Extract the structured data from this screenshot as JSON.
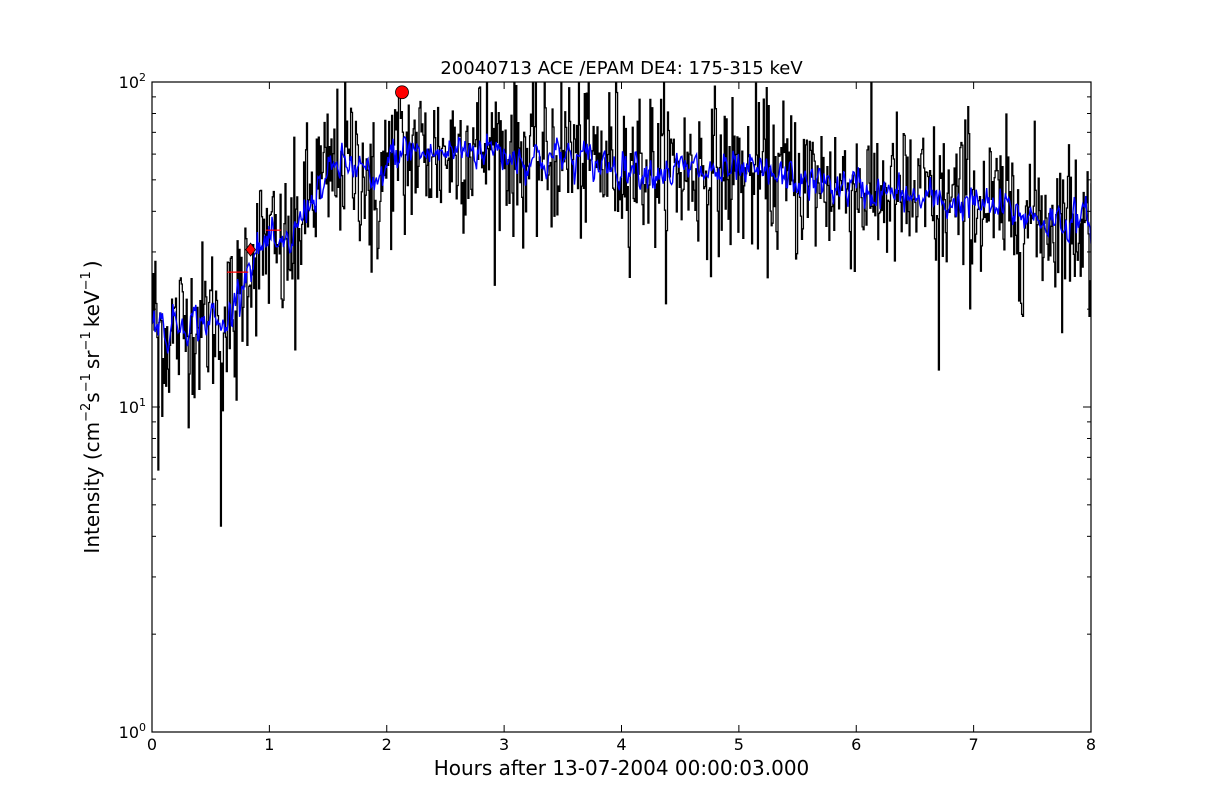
{
  "chart_data": {
    "type": "line",
    "title": "20040713 ACE /EPAM DE4: 175-315 keV",
    "xlabel": "Hours after 13-07-2004 00:00:03.000",
    "ylabel": {
      "prefix": "Intensity (cm",
      "exp1": "−2",
      "mid1": "s",
      "exp2": "−1",
      "mid2": "sr",
      "exp3": "−1",
      "mid3": "keV",
      "exp4": "−1",
      "suffix": ")"
    },
    "xlim": [
      0,
      8
    ],
    "ylim": [
      1,
      100
    ],
    "yscale": "log",
    "x_ticks": [
      "0",
      "1",
      "2",
      "3",
      "4",
      "5",
      "6",
      "7",
      "8"
    ],
    "y_ticks": [
      {
        "value": 1,
        "base": "10",
        "exp": "0"
      },
      {
        "value": 10,
        "base": "10",
        "exp": "1"
      },
      {
        "value": 100,
        "base": "10",
        "exp": "2"
      }
    ],
    "grid": false,
    "series": [
      {
        "color": "#000000",
        "style": "steps",
        "envelope": [
          [
            0.0,
            20
          ],
          [
            0.1,
            16
          ],
          [
            0.2,
            17
          ],
          [
            0.3,
            18
          ],
          [
            0.4,
            18
          ],
          [
            0.5,
            19
          ],
          [
            0.6,
            17
          ],
          [
            0.7,
            20
          ],
          [
            0.8,
            27
          ],
          [
            0.9,
            30
          ],
          [
            1.0,
            32
          ],
          [
            1.1,
            28
          ],
          [
            1.2,
            33
          ],
          [
            1.3,
            40
          ],
          [
            1.4,
            48
          ],
          [
            1.5,
            50
          ],
          [
            1.6,
            57
          ],
          [
            1.7,
            56
          ],
          [
            1.8,
            55
          ],
          [
            1.9,
            42
          ],
          [
            2.0,
            56
          ],
          [
            2.1,
            62
          ],
          [
            2.2,
            63
          ],
          [
            2.3,
            60
          ],
          [
            2.5,
            60
          ],
          [
            2.7,
            64
          ],
          [
            2.9,
            63
          ],
          [
            3.0,
            62
          ],
          [
            3.2,
            58
          ],
          [
            3.5,
            60
          ],
          [
            3.8,
            57
          ],
          [
            4.0,
            57
          ],
          [
            4.3,
            54
          ],
          [
            4.6,
            53
          ],
          [
            5.0,
            52
          ],
          [
            5.3,
            51
          ],
          [
            5.6,
            49
          ],
          [
            6.0,
            47
          ],
          [
            6.3,
            45
          ],
          [
            6.6,
            43
          ],
          [
            7.0,
            42
          ],
          [
            7.3,
            40
          ],
          [
            7.6,
            38
          ],
          [
            8.0,
            37
          ]
        ],
        "spikes": [
          [
            0.05,
            6.4
          ],
          [
            0.58,
            4.3
          ],
          [
            0.72,
            10.5
          ],
          [
            1.22,
            15
          ],
          [
            1.87,
            26
          ],
          [
            2.15,
            34
          ],
          [
            3.55,
            96
          ],
          [
            6.7,
            13
          ],
          [
            6.95,
            84
          ],
          [
            7.42,
            19
          ],
          [
            7.98,
            19
          ]
        ]
      },
      {
        "color": "#0000ff",
        "style": "line",
        "envelope": [
          [
            0.0,
            20
          ],
          [
            0.1,
            17
          ],
          [
            0.2,
            18
          ],
          [
            0.3,
            19
          ],
          [
            0.4,
            18
          ],
          [
            0.5,
            19
          ],
          [
            0.6,
            17
          ],
          [
            0.7,
            21
          ],
          [
            0.8,
            27
          ],
          [
            0.9,
            30
          ],
          [
            1.0,
            32
          ],
          [
            1.1,
            29
          ],
          [
            1.2,
            33
          ],
          [
            1.3,
            40
          ],
          [
            1.4,
            47
          ],
          [
            1.5,
            50
          ],
          [
            1.6,
            56
          ],
          [
            1.7,
            55
          ],
          [
            1.8,
            54
          ],
          [
            1.9,
            44
          ],
          [
            2.0,
            56
          ],
          [
            2.1,
            61
          ],
          [
            2.2,
            62
          ],
          [
            2.3,
            60
          ],
          [
            2.5,
            60
          ],
          [
            2.7,
            63
          ],
          [
            2.9,
            62
          ],
          [
            3.0,
            61
          ],
          [
            3.2,
            58
          ],
          [
            3.5,
            59
          ],
          [
            3.8,
            56
          ],
          [
            4.0,
            56
          ],
          [
            4.3,
            54
          ],
          [
            4.6,
            53
          ],
          [
            5.0,
            52
          ],
          [
            5.3,
            51
          ],
          [
            5.6,
            49
          ],
          [
            6.0,
            47
          ],
          [
            6.3,
            45
          ],
          [
            6.6,
            43
          ],
          [
            7.0,
            42
          ],
          [
            7.3,
            40
          ],
          [
            7.6,
            38
          ],
          [
            8.0,
            37
          ]
        ]
      }
    ],
    "markers": [
      {
        "shape": "circle",
        "color": "#ff0000",
        "x": 2.13,
        "y": 93
      },
      {
        "shape": "diamond",
        "color": "#ff0000",
        "x": 0.84,
        "y": 30.5
      }
    ],
    "annotation_segments": [
      {
        "color": "#ff0000",
        "x1": 0.64,
        "x2": 0.82,
        "y": 26
      },
      {
        "color": "#ff0000",
        "x1": 0.97,
        "x2": 1.1,
        "y": 35
      }
    ]
  }
}
